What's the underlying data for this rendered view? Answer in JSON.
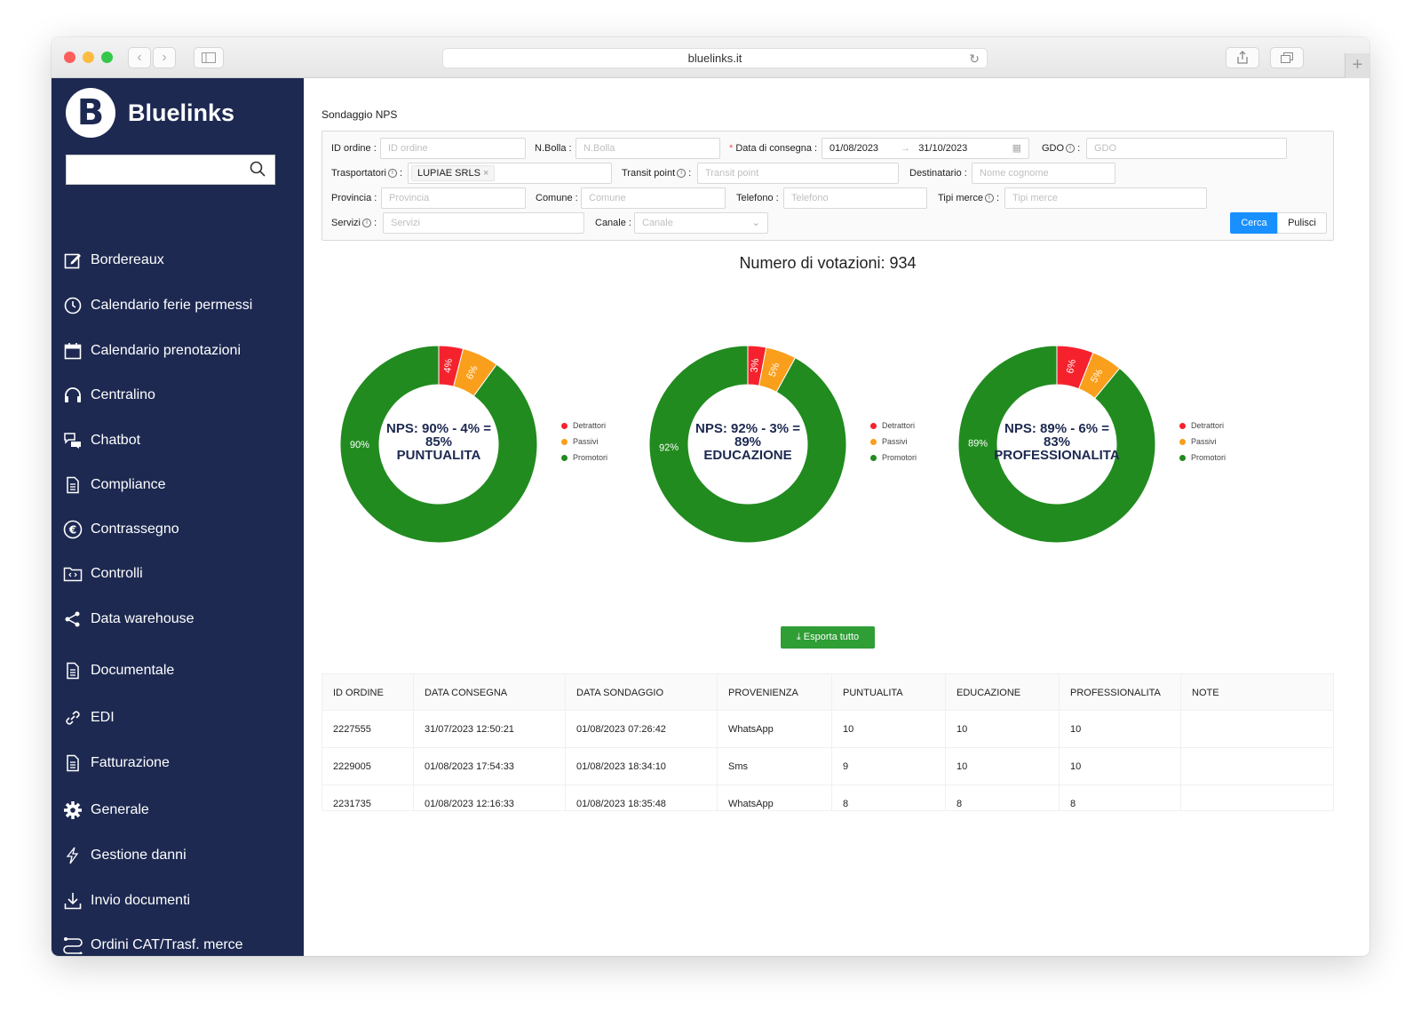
{
  "browser": {
    "url": "bluelinks.it"
  },
  "sidebar": {
    "brand": "Bluelinks",
    "logo_letter": "B",
    "search": {
      "placeholder": "",
      "value": ""
    },
    "items": [
      {
        "label": "Bordereaux",
        "icon": "edit-icon"
      },
      {
        "label": "Calendario ferie permessi",
        "icon": "clock-icon"
      },
      {
        "label": "Calendario prenotazioni",
        "icon": "calendar-icon"
      },
      {
        "label": "Centralino",
        "icon": "headphones-icon"
      },
      {
        "label": "Chatbot",
        "icon": "chat-icon"
      },
      {
        "label": "Compliance",
        "icon": "document-icon"
      },
      {
        "label": "Contrassegno",
        "icon": "euro-icon"
      },
      {
        "label": "Controlli",
        "icon": "folder-code-icon"
      },
      {
        "label": "Data warehouse",
        "icon": "share-icon"
      },
      {
        "label": "Documentale",
        "icon": "document-icon"
      },
      {
        "label": "EDI",
        "icon": "link-icon"
      },
      {
        "label": "Fatturazione",
        "icon": "document-icon"
      },
      {
        "label": "Generale",
        "icon": "gear-icon"
      },
      {
        "label": "Gestione danni",
        "icon": "lightning-icon"
      },
      {
        "label": "Invio documenti",
        "icon": "download-icon"
      },
      {
        "label": "Ordini CAT/Trasf. merce",
        "icon": "route-icon"
      }
    ]
  },
  "page": {
    "title": "Sondaggio NPS",
    "votes": "Numero di votazioni: 934"
  },
  "filters": {
    "id_ordine": {
      "label": "ID ordine",
      "placeholder": "ID ordine"
    },
    "n_bolla": {
      "label": "N.Bolla",
      "placeholder": "N.Bolla"
    },
    "data_consegna": {
      "label": "Data di consegna",
      "from": "01/08/2023",
      "to": "31/10/2023"
    },
    "gdo": {
      "label": "GDO",
      "placeholder": "GDO"
    },
    "trasportatori": {
      "label": "Trasportatori",
      "tag": "LUPIAE SRLS"
    },
    "transit_point": {
      "label": "Transit point",
      "placeholder": "Transit point"
    },
    "destinatario": {
      "label": "Destinatario",
      "placeholder": "Nome cognome"
    },
    "provincia": {
      "label": "Provincia",
      "placeholder": "Provincia"
    },
    "comune": {
      "label": "Comune",
      "placeholder": "Comune"
    },
    "telefono": {
      "label": "Telefono",
      "placeholder": "Telefono"
    },
    "tipi_merce": {
      "label": "Tipi merce",
      "placeholder": "Tipi merce"
    },
    "servizi": {
      "label": "Servizi",
      "placeholder": "Servizi"
    },
    "canale": {
      "label": "Canale",
      "placeholder": "Canale"
    },
    "search_label": "Cerca",
    "reset_label": "Pulisci"
  },
  "legend": [
    "Detrattori",
    "Passivi",
    "Promotori"
  ],
  "colors": {
    "detrattori": "#f5222d",
    "passivi": "#fa9f1c",
    "promotori": "#218b1f",
    "sidebar": "#1d2951",
    "primary": "#1890ff",
    "export": "#2e9e35"
  },
  "chart_data": [
    {
      "type": "pie",
      "categories": [
        "Detrattori",
        "Passivi",
        "Promotori"
      ],
      "values": [
        4,
        6,
        90
      ],
      "center_line1": "NPS: 90% - 4% =",
      "center_line2": "85%",
      "center_line3": "PUNTUALITA",
      "slice_labels": [
        "4%",
        "6%",
        "90%"
      ]
    },
    {
      "type": "pie",
      "categories": [
        "Detrattori",
        "Passivi",
        "Promotori"
      ],
      "values": [
        3,
        5,
        92
      ],
      "center_line1": "NPS: 92% - 3% =",
      "center_line2": "89%",
      "center_line3": "EDUCAZIONE",
      "slice_labels": [
        "3%",
        "5%",
        "92%"
      ]
    },
    {
      "type": "pie",
      "categories": [
        "Detrattori",
        "Passivi",
        "Promotori"
      ],
      "values": [
        6,
        5,
        89
      ],
      "center_line1": "NPS: 89% - 6% =",
      "center_line2": "83%",
      "center_line3": "PROFESSIONALITA",
      "slice_labels": [
        "6%",
        "5%",
        "89%"
      ]
    }
  ],
  "export_label": "Esporta tutto",
  "table": {
    "columns": [
      "ID ORDINE",
      "DATA CONSEGNA",
      "DATA SONDAGGIO",
      "PROVENIENZA",
      "PUNTUALITA",
      "EDUCAZIONE",
      "PROFESSIONALITA",
      "NOTE"
    ],
    "rows": [
      [
        "2227555",
        "31/07/2023 12:50:21",
        "01/08/2023 07:26:42",
        "WhatsApp",
        "10",
        "10",
        "10",
        ""
      ],
      [
        "2229005",
        "01/08/2023 17:54:33",
        "01/08/2023 18:34:10",
        "Sms",
        "9",
        "10",
        "10",
        ""
      ],
      [
        "2231735",
        "01/08/2023 12:16:33",
        "01/08/2023 18:35:48",
        "WhatsApp",
        "8",
        "8",
        "8",
        ""
      ]
    ]
  }
}
